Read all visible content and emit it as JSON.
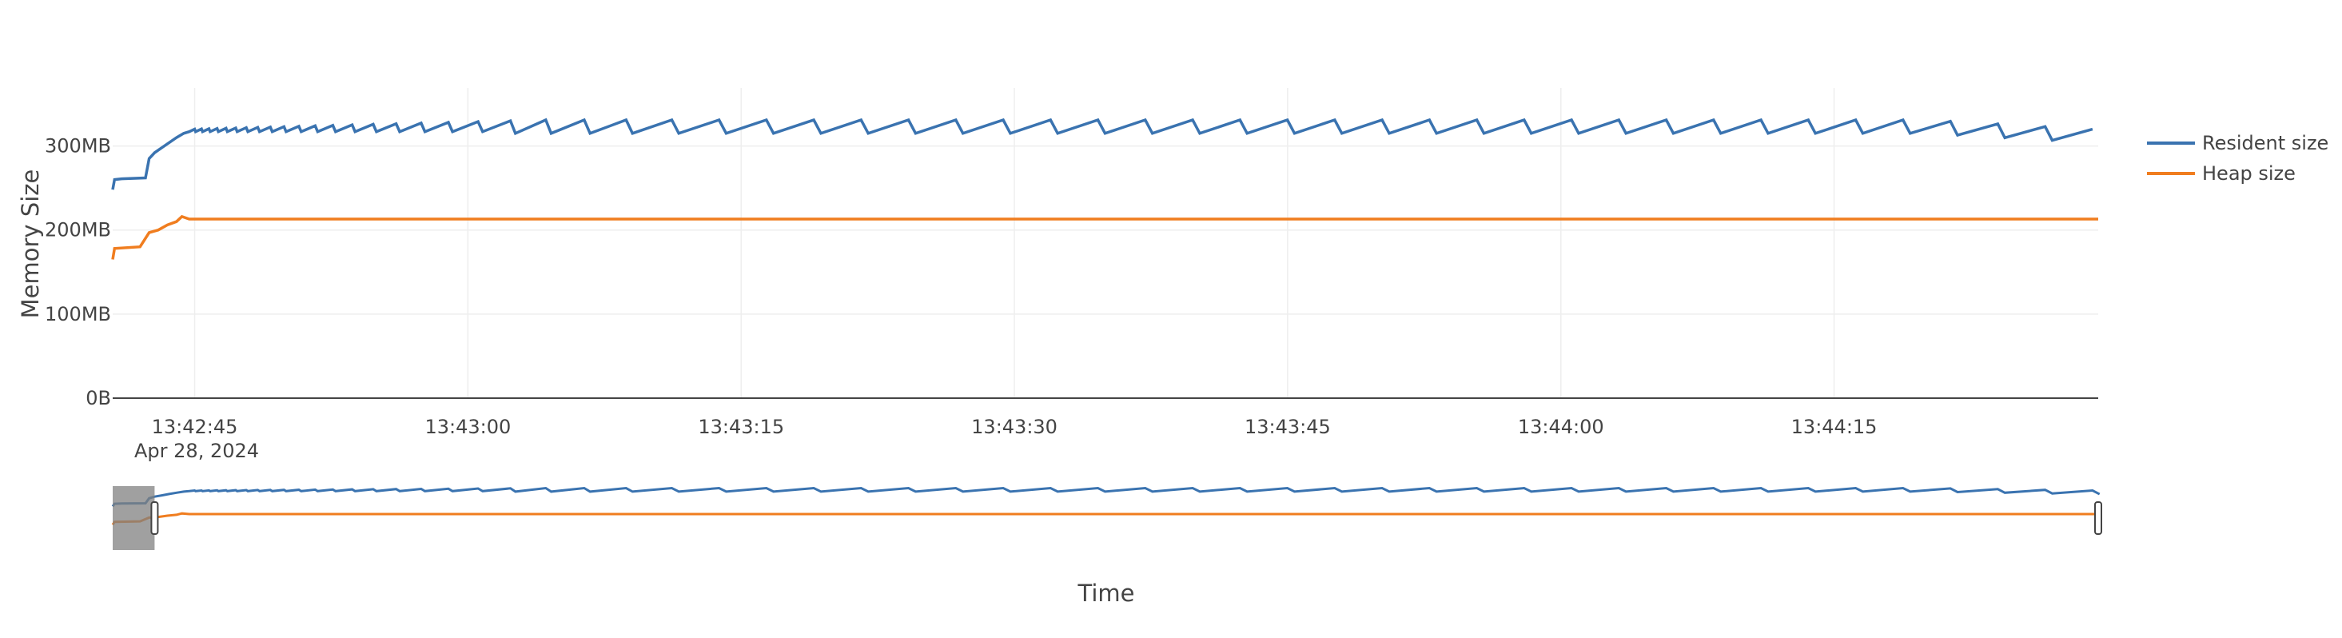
{
  "chart_data": {
    "type": "line",
    "title": "",
    "xlabel": "Time",
    "ylabel": "Memory Size",
    "date_label": "Apr 28, 2024",
    "x_ticks": [
      "13:42:45",
      "13:43:00",
      "13:43:15",
      "13:43:30",
      "13:43:45",
      "13:44:00",
      "13:44:15"
    ],
    "x_tick_seconds": [
      45,
      60,
      75,
      90,
      105,
      120,
      135
    ],
    "x_range": [
      "13:42:40.5",
      "13:44:29.5"
    ],
    "y_ticks": [
      "0B",
      "100MB",
      "200MB",
      "300MB"
    ],
    "y_tick_values": [
      0,
      100,
      200,
      300
    ],
    "ylim": [
      0,
      350
    ],
    "grid": true,
    "legend_position": "top-right",
    "range_slider": {
      "visible": true,
      "window_start_seconds": 42.8,
      "window_end_seconds": 149.5
    },
    "series": [
      {
        "name": "Resident size",
        "color": "#3a73b0",
        "description": "ramps from ~250MB to ~317MB by 13:42:44, then sawtooth oscillating ~310–330MB"
      },
      {
        "name": "Heap size",
        "color": "#f07d1f",
        "description": "ramps from ~165MB to ~213MB by 13:42:44, then flat ~213MB"
      }
    ],
    "x_start_time": "13:42:00"
  }
}
